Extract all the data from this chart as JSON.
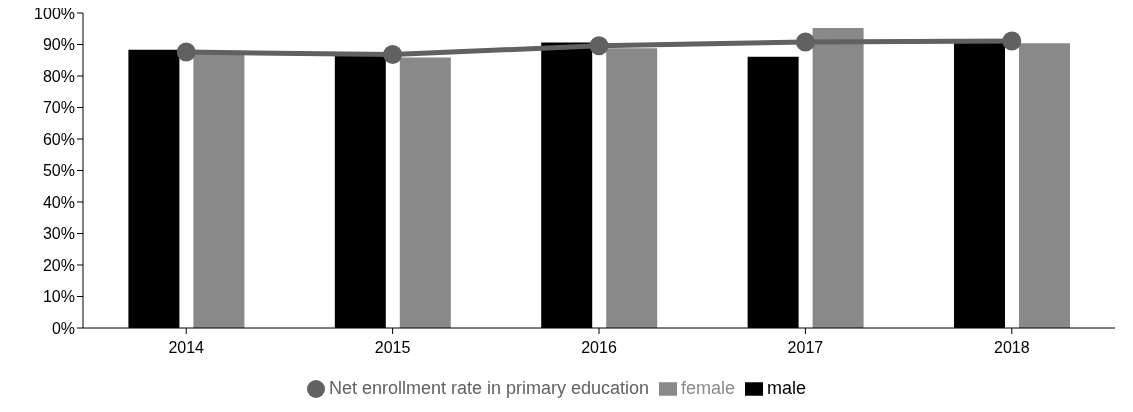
{
  "chart_data": {
    "type": "bar",
    "categories": [
      "2014",
      "2015",
      "2016",
      "2017",
      "2018"
    ],
    "series": [
      {
        "name": "male",
        "color": "#000000",
        "values": [
          88.3,
          86.5,
          90.6,
          86.1,
          91
        ]
      },
      {
        "name": "female",
        "color": "#898989",
        "values": [
          87.5,
          85.9,
          88.8,
          95.2,
          90.4
        ]
      },
      {
        "name": "Net enrollment rate in primary education",
        "type": "line",
        "color": "#616161",
        "marker": "circle",
        "values": [
          87.6,
          86.8,
          89.6,
          90.8,
          91.1
        ]
      }
    ],
    "ylim": [
      0,
      100
    ],
    "yticks": [
      {
        "value": 0,
        "label": "0%"
      },
      {
        "value": 10,
        "label": "10%"
      },
      {
        "value": 20,
        "label": "20%"
      },
      {
        "value": 30,
        "label": "30%"
      },
      {
        "value": 40,
        "label": "40%"
      },
      {
        "value": 50,
        "label": "50%"
      },
      {
        "value": 60,
        "label": "60%"
      },
      {
        "value": 70,
        "label": "70%"
      },
      {
        "value": 80,
        "label": "80%"
      },
      {
        "value": 90,
        "label": "90%"
      },
      {
        "value": 100,
        "label": "100%"
      }
    ],
    "grid": false,
    "legend": "bottom"
  }
}
